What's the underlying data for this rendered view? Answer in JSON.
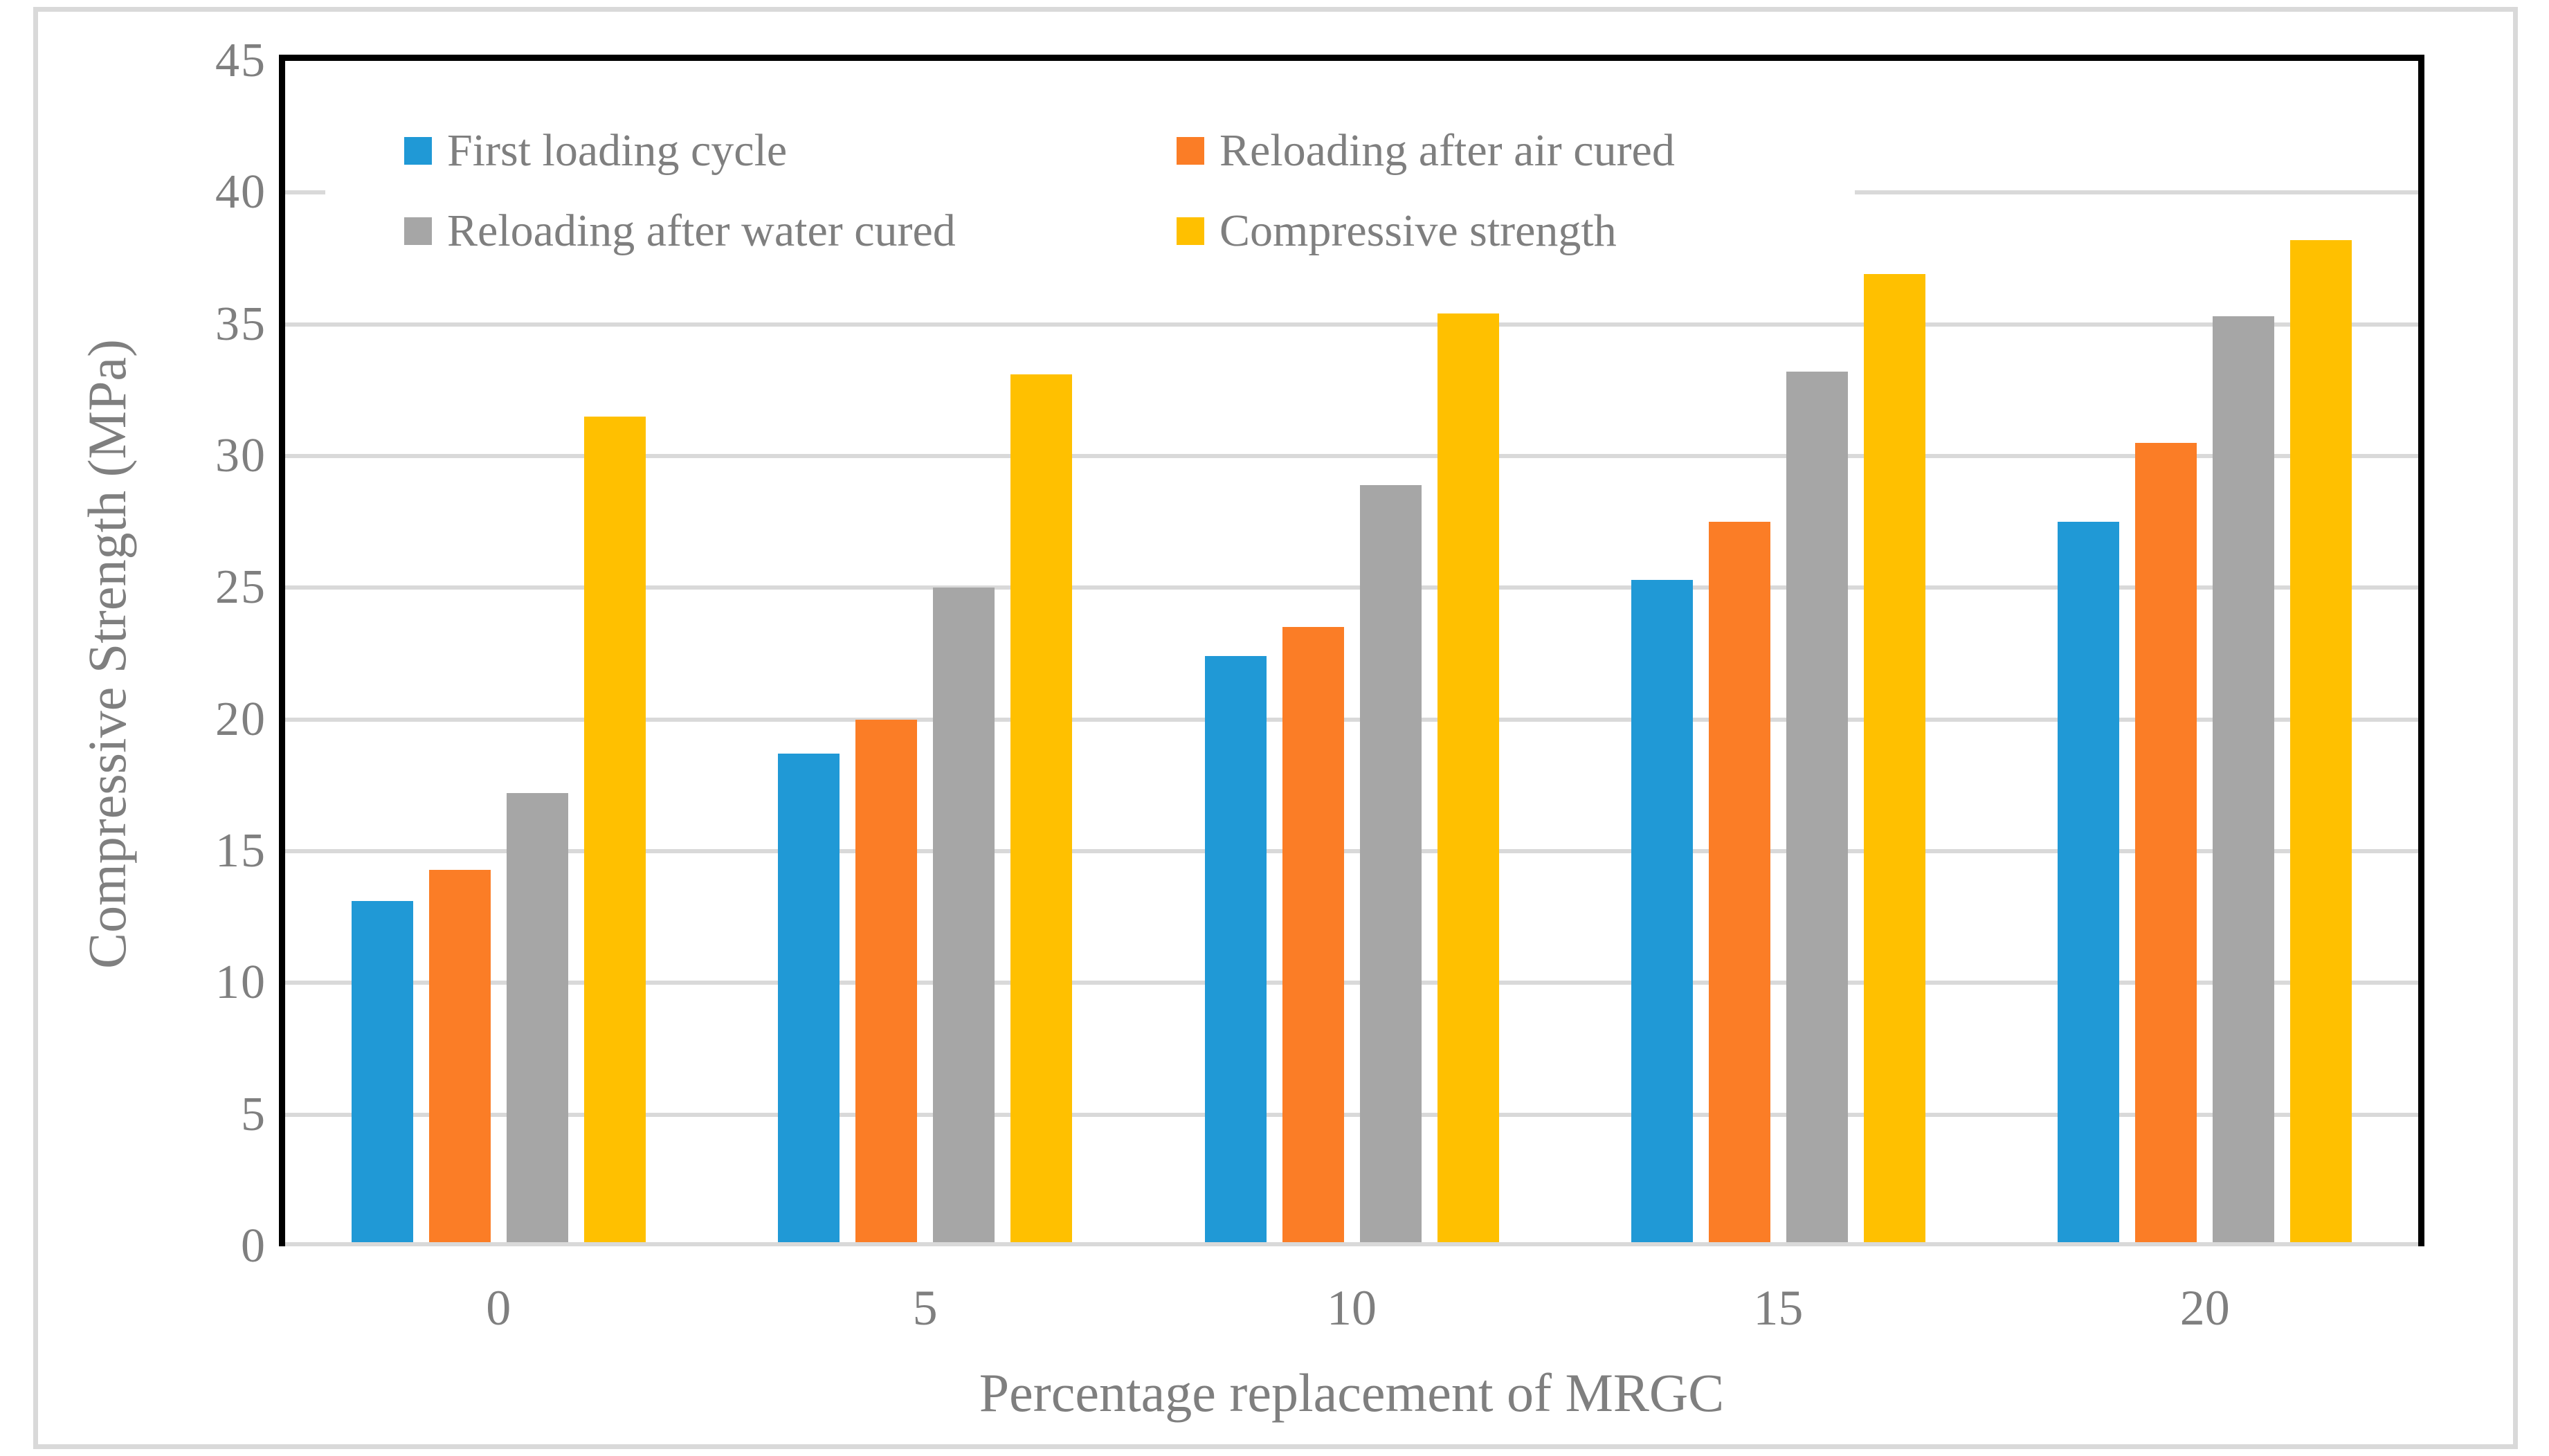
{
  "figure": {
    "y_axis_title": "Compressive Strength (MPa)",
    "x_axis_title": "Percentage replacement of MRGC"
  },
  "chart_data": {
    "type": "bar",
    "title": "",
    "xlabel": "Percentage replacement of MRGC",
    "ylabel": "Compressive Strength (MPa)",
    "categories": [
      "0",
      "5",
      "10",
      "15",
      "20"
    ],
    "series": [
      {
        "name": "First loading cycle",
        "color": "#2099d6",
        "values": [
          13.1,
          18.7,
          22.4,
          25.3,
          27.5
        ]
      },
      {
        "name": "Reloading after air cured",
        "color": "#fb7d26",
        "values": [
          14.3,
          20.0,
          23.5,
          27.5,
          30.5
        ]
      },
      {
        "name": "Reloading after water cured",
        "color": "#a6a6a6",
        "values": [
          17.2,
          25.0,
          28.9,
          33.2,
          35.3
        ]
      },
      {
        "name": "Compressive strength",
        "color": "#ffc000",
        "values": [
          31.5,
          33.1,
          35.4,
          36.9,
          38.2
        ]
      }
    ],
    "ylim": [
      0,
      45
    ],
    "ytick_step": 5,
    "yticks": [
      "0",
      "5",
      "10",
      "15",
      "20",
      "25",
      "30",
      "35",
      "40",
      "45"
    ],
    "grid": true,
    "legend_position": "top-left inside plot, 2 columns, white background",
    "styling": {
      "gridline_color": "#d9d9d9",
      "axis_frame_color": "#000000",
      "text_color": "#7f7f7f",
      "figure_border_color": "#d9d9d9",
      "background": "#ffffff"
    }
  }
}
